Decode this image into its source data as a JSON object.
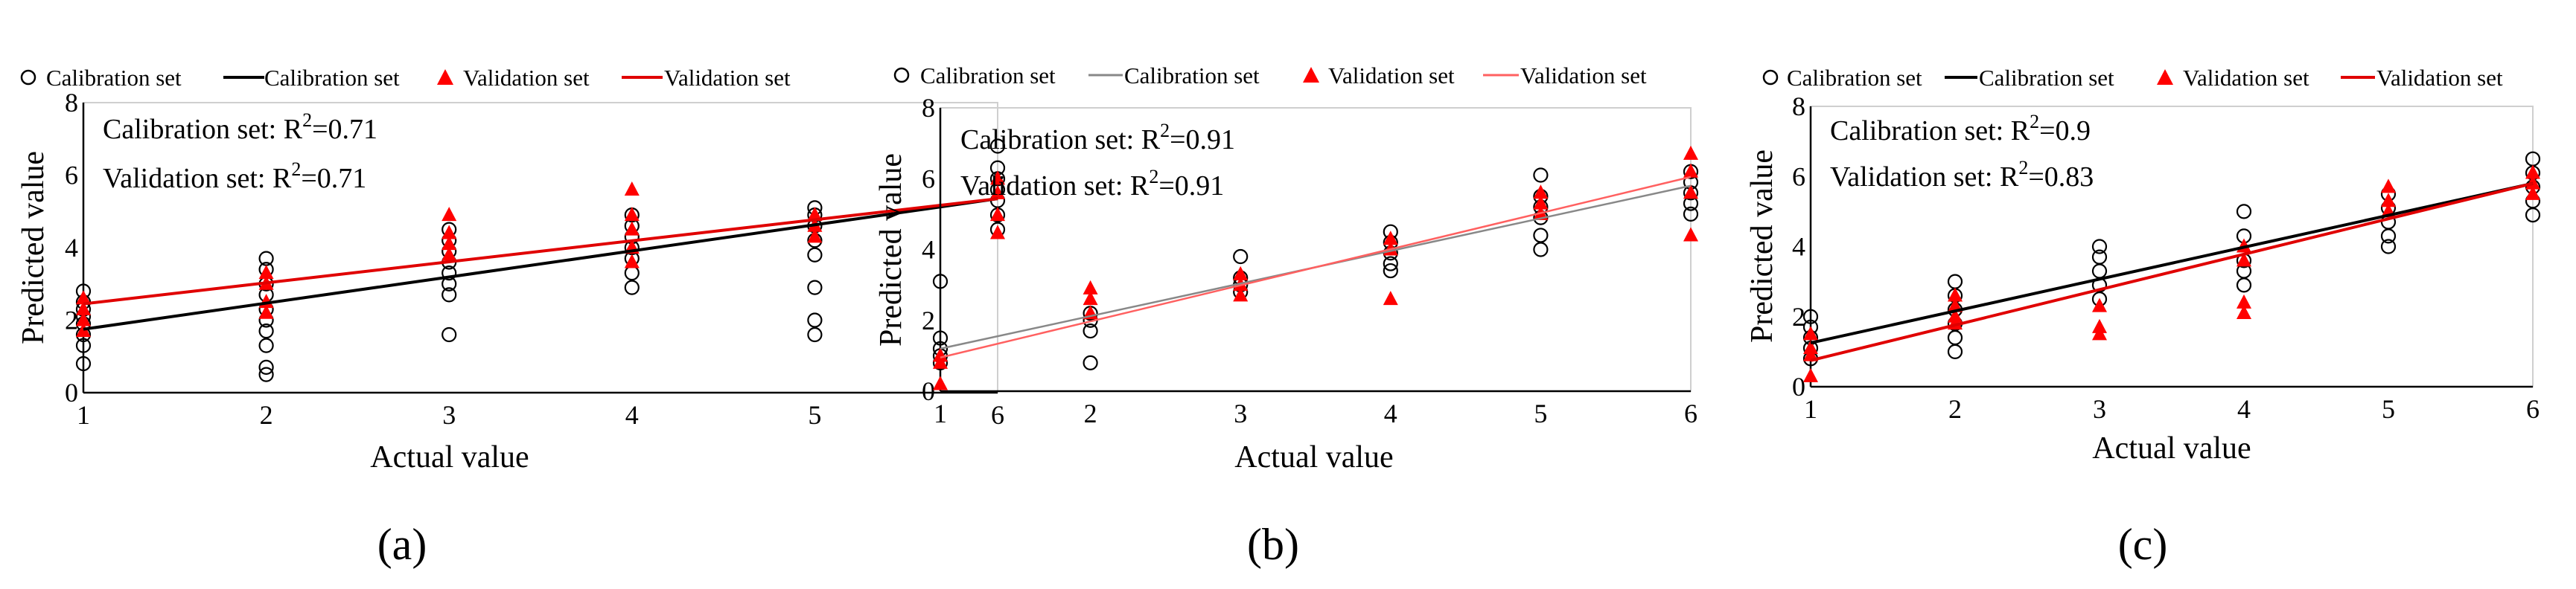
{
  "figure": {
    "panel_labels": [
      "(a)",
      "(b)",
      "(c)"
    ]
  },
  "colors": {
    "calibration_points": "#000000",
    "validation_points": "#ff0000",
    "background": "#ffffff"
  },
  "chart_data": [
    {
      "type": "scatter",
      "panel": "(a)",
      "xlabel": "Actual value",
      "ylabel": "Predicted value",
      "xlim": [
        1,
        6
      ],
      "ylim": [
        0,
        8
      ],
      "yticks_shown": [
        0,
        2,
        4,
        6
      ],
      "top_tick_label": "8",
      "xticks": [
        1,
        2,
        3,
        4,
        5,
        6
      ],
      "legend": [
        {
          "label": "Calibration set",
          "kind": "marker-circle"
        },
        {
          "label": "Calibration set",
          "kind": "line"
        },
        {
          "label": "Validation set",
          "kind": "marker-triangle"
        },
        {
          "label": "Validation set",
          "kind": "line"
        }
      ],
      "annotations": {
        "calibration": {
          "prefix": "Calibration set: R",
          "sup": "2",
          "value": "=0.71"
        },
        "validation": {
          "prefix": "Validation set: R",
          "sup": "2",
          "value": "=0.71"
        }
      },
      "line_colors": {
        "calibration": "#000000",
        "validation": "#e00000"
      },
      "series": [
        {
          "name": "Calibration set",
          "marker": "circle",
          "points": [
            [
              1,
              0.8
            ],
            [
              1,
              1.3
            ],
            [
              1,
              1.6
            ],
            [
              1,
              1.9
            ],
            [
              1,
              2.1
            ],
            [
              1,
              2.3
            ],
            [
              1,
              2.5
            ],
            [
              1,
              2.8
            ],
            [
              2,
              0.5
            ],
            [
              2,
              0.7
            ],
            [
              2,
              1.3
            ],
            [
              2,
              1.7
            ],
            [
              2,
              2.0
            ],
            [
              2,
              2.3
            ],
            [
              2,
              2.7
            ],
            [
              2,
              3.0
            ],
            [
              2,
              3.4
            ],
            [
              2,
              3.7
            ],
            [
              3,
              1.6
            ],
            [
              3,
              2.7
            ],
            [
              3,
              3.0
            ],
            [
              3,
              3.3
            ],
            [
              3,
              3.6
            ],
            [
              3,
              3.9
            ],
            [
              3,
              4.2
            ],
            [
              3,
              4.5
            ],
            [
              4,
              2.9
            ],
            [
              4,
              3.3
            ],
            [
              4,
              3.7
            ],
            [
              4,
              4.0
            ],
            [
              4,
              4.3
            ],
            [
              4,
              4.6
            ],
            [
              4,
              4.9
            ],
            [
              5,
              1.6
            ],
            [
              5,
              2.0
            ],
            [
              5,
              2.9
            ],
            [
              5,
              3.8
            ],
            [
              5,
              4.2
            ],
            [
              5,
              4.6
            ],
            [
              5,
              4.9
            ],
            [
              5,
              5.1
            ],
            [
              6,
              4.5
            ],
            [
              6,
              4.9
            ],
            [
              6,
              5.3
            ],
            [
              6,
              5.6
            ],
            [
              6,
              5.9
            ],
            [
              6,
              6.2
            ],
            [
              6,
              6.8
            ]
          ]
        },
        {
          "name": "Validation set",
          "marker": "triangle",
          "points": [
            [
              1,
              1.7
            ],
            [
              1,
              2.0
            ],
            [
              1,
              2.3
            ],
            [
              1,
              2.6
            ],
            [
              2,
              2.2
            ],
            [
              2,
              2.5
            ],
            [
              2,
              3.0
            ],
            [
              2,
              3.3
            ],
            [
              3,
              3.8
            ],
            [
              3,
              4.1
            ],
            [
              3,
              4.4
            ],
            [
              3,
              4.9
            ],
            [
              4,
              3.6
            ],
            [
              4,
              4.0
            ],
            [
              4,
              4.5
            ],
            [
              4,
              4.9
            ],
            [
              4,
              5.6
            ],
            [
              5,
              4.3
            ],
            [
              5,
              4.6
            ],
            [
              5,
              4.9
            ],
            [
              6,
              4.4
            ],
            [
              6,
              4.9
            ],
            [
              6,
              5.5
            ],
            [
              6,
              5.9
            ]
          ]
        }
      ],
      "fit_lines": [
        {
          "name": "Calibration set",
          "from": [
            1,
            1.75
          ],
          "to": [
            6,
            5.35
          ]
        },
        {
          "name": "Validation set",
          "from": [
            1,
            2.45
          ],
          "to": [
            6,
            5.35
          ]
        }
      ]
    },
    {
      "type": "scatter",
      "panel": "(b)",
      "xlabel": "Actual value",
      "ylabel": "Predicted value",
      "xlim": [
        1,
        6
      ],
      "ylim": [
        0,
        8
      ],
      "yticks_shown": [
        0,
        2,
        4,
        6,
        8
      ],
      "top_tick_label": "8",
      "xticks": [
        1,
        2,
        3,
        4,
        5,
        6
      ],
      "legend": [
        {
          "label": "Calibration set",
          "kind": "marker-circle"
        },
        {
          "label": "Calibration set",
          "kind": "line"
        },
        {
          "label": "Validation set",
          "kind": "marker-triangle"
        },
        {
          "label": "Validation set",
          "kind": "line"
        }
      ],
      "annotations": {
        "calibration": {
          "prefix": "Calibration set: R",
          "sup": "2",
          "value": "=0.91"
        },
        "validation": {
          "prefix": "Validation set: R",
          "sup": "2",
          "value": "=0.91"
        }
      },
      "line_colors": {
        "calibration": "#888888",
        "validation": "#ff6060"
      },
      "series": [
        {
          "name": "Calibration set",
          "marker": "circle",
          "points": [
            [
              1,
              0.8
            ],
            [
              1,
              1.0
            ],
            [
              1,
              1.2
            ],
            [
              1,
              1.5
            ],
            [
              1,
              3.1
            ],
            [
              2,
              0.8
            ],
            [
              2,
              1.7
            ],
            [
              2,
              2.0
            ],
            [
              2,
              2.2
            ],
            [
              3,
              2.8
            ],
            [
              3,
              3.0
            ],
            [
              3,
              3.2
            ],
            [
              3,
              3.8
            ],
            [
              4,
              3.4
            ],
            [
              4,
              3.6
            ],
            [
              4,
              3.9
            ],
            [
              4,
              4.2
            ],
            [
              4,
              4.5
            ],
            [
              5,
              4.0
            ],
            [
              5,
              4.4
            ],
            [
              5,
              4.9
            ],
            [
              5,
              5.2
            ],
            [
              5,
              5.5
            ],
            [
              5,
              6.1
            ],
            [
              6,
              5.0
            ],
            [
              6,
              5.3
            ],
            [
              6,
              5.6
            ],
            [
              6,
              5.9
            ],
            [
              6,
              6.2
            ]
          ]
        },
        {
          "name": "Validation set",
          "marker": "triangle",
          "points": [
            [
              1,
              0.2
            ],
            [
              1,
              0.8
            ],
            [
              1,
              1.0
            ],
            [
              2,
              2.2
            ],
            [
              2,
              2.6
            ],
            [
              2,
              2.9
            ],
            [
              3,
              2.7
            ],
            [
              3,
              3.0
            ],
            [
              3,
              3.3
            ],
            [
              4,
              2.6
            ],
            [
              4,
              4.0
            ],
            [
              4,
              4.3
            ],
            [
              5,
              5.0
            ],
            [
              5,
              5.3
            ],
            [
              5,
              5.6
            ],
            [
              6,
              4.4
            ],
            [
              6,
              5.6
            ],
            [
              6,
              6.2
            ],
            [
              6,
              6.7
            ]
          ]
        }
      ],
      "fit_lines": [
        {
          "name": "Calibration set",
          "from": [
            1,
            1.2
          ],
          "to": [
            6,
            5.8
          ]
        },
        {
          "name": "Validation set",
          "from": [
            1,
            0.95
          ],
          "to": [
            6,
            6.05
          ]
        }
      ]
    },
    {
      "type": "scatter",
      "panel": "(c)",
      "xlabel": "Actual value",
      "ylabel": "Predicted value",
      "xlim": [
        1,
        6
      ],
      "ylim": [
        0,
        8
      ],
      "yticks_shown": [
        0,
        2,
        4,
        6,
        8
      ],
      "top_tick_label": "8",
      "xticks": [
        1,
        2,
        3,
        4,
        5,
        6
      ],
      "legend": [
        {
          "label": "Calibration set",
          "kind": "marker-circle"
        },
        {
          "label": "Calibration set",
          "kind": "line"
        },
        {
          "label": "Validation set",
          "kind": "marker-triangle"
        },
        {
          "label": "Validation set",
          "kind": "line"
        }
      ],
      "annotations": {
        "calibration": {
          "prefix": "Calibration set: R",
          "sup": "2",
          "value": "=0.9"
        },
        "validation": {
          "prefix": "Validation set: R",
          "sup": "2",
          "value": "=0.83"
        }
      },
      "line_colors": {
        "calibration": "#000000",
        "validation": "#e00000"
      },
      "series": [
        {
          "name": "Calibration set",
          "marker": "circle",
          "points": [
            [
              1,
              0.8
            ],
            [
              1,
              1.1
            ],
            [
              1,
              1.4
            ],
            [
              1,
              1.7
            ],
            [
              1,
              2.0
            ],
            [
              2,
              1.0
            ],
            [
              2,
              1.4
            ],
            [
              2,
              1.8
            ],
            [
              2,
              2.2
            ],
            [
              2,
              2.6
            ],
            [
              2,
              3.0
            ],
            [
              3,
              2.5
            ],
            [
              3,
              2.9
            ],
            [
              3,
              3.3
            ],
            [
              3,
              3.7
            ],
            [
              3,
              4.0
            ],
            [
              4,
              2.9
            ],
            [
              4,
              3.3
            ],
            [
              4,
              3.6
            ],
            [
              4,
              4.3
            ],
            [
              4,
              5.0
            ],
            [
              5,
              4.0
            ],
            [
              5,
              4.3
            ],
            [
              5,
              4.7
            ],
            [
              5,
              5.1
            ],
            [
              5,
              5.5
            ],
            [
              6,
              4.9
            ],
            [
              6,
              5.3
            ],
            [
              6,
              5.7
            ],
            [
              6,
              6.1
            ],
            [
              6,
              6.5
            ]
          ]
        },
        {
          "name": "Validation set",
          "marker": "triangle",
          "points": [
            [
              1,
              0.3
            ],
            [
              1,
              0.9
            ],
            [
              1,
              1.1
            ],
            [
              1,
              1.5
            ],
            [
              2,
              1.8
            ],
            [
              2,
              2.0
            ],
            [
              2,
              2.3
            ],
            [
              2,
              2.6
            ],
            [
              3,
              1.5
            ],
            [
              3,
              1.7
            ],
            [
              3,
              2.3
            ],
            [
              4,
              2.1
            ],
            [
              4,
              2.4
            ],
            [
              4,
              3.6
            ],
            [
              4,
              4.0
            ],
            [
              5,
              5.0
            ],
            [
              5,
              5.3
            ],
            [
              5,
              5.7
            ],
            [
              6,
              5.5
            ],
            [
              6,
              5.8
            ],
            [
              6,
              6.1
            ]
          ]
        }
      ],
      "fit_lines": [
        {
          "name": "Calibration set",
          "from": [
            1,
            1.25
          ],
          "to": [
            6,
            5.8
          ]
        },
        {
          "name": "Validation set",
          "from": [
            1,
            0.75
          ],
          "to": [
            6,
            5.8
          ]
        }
      ]
    }
  ]
}
